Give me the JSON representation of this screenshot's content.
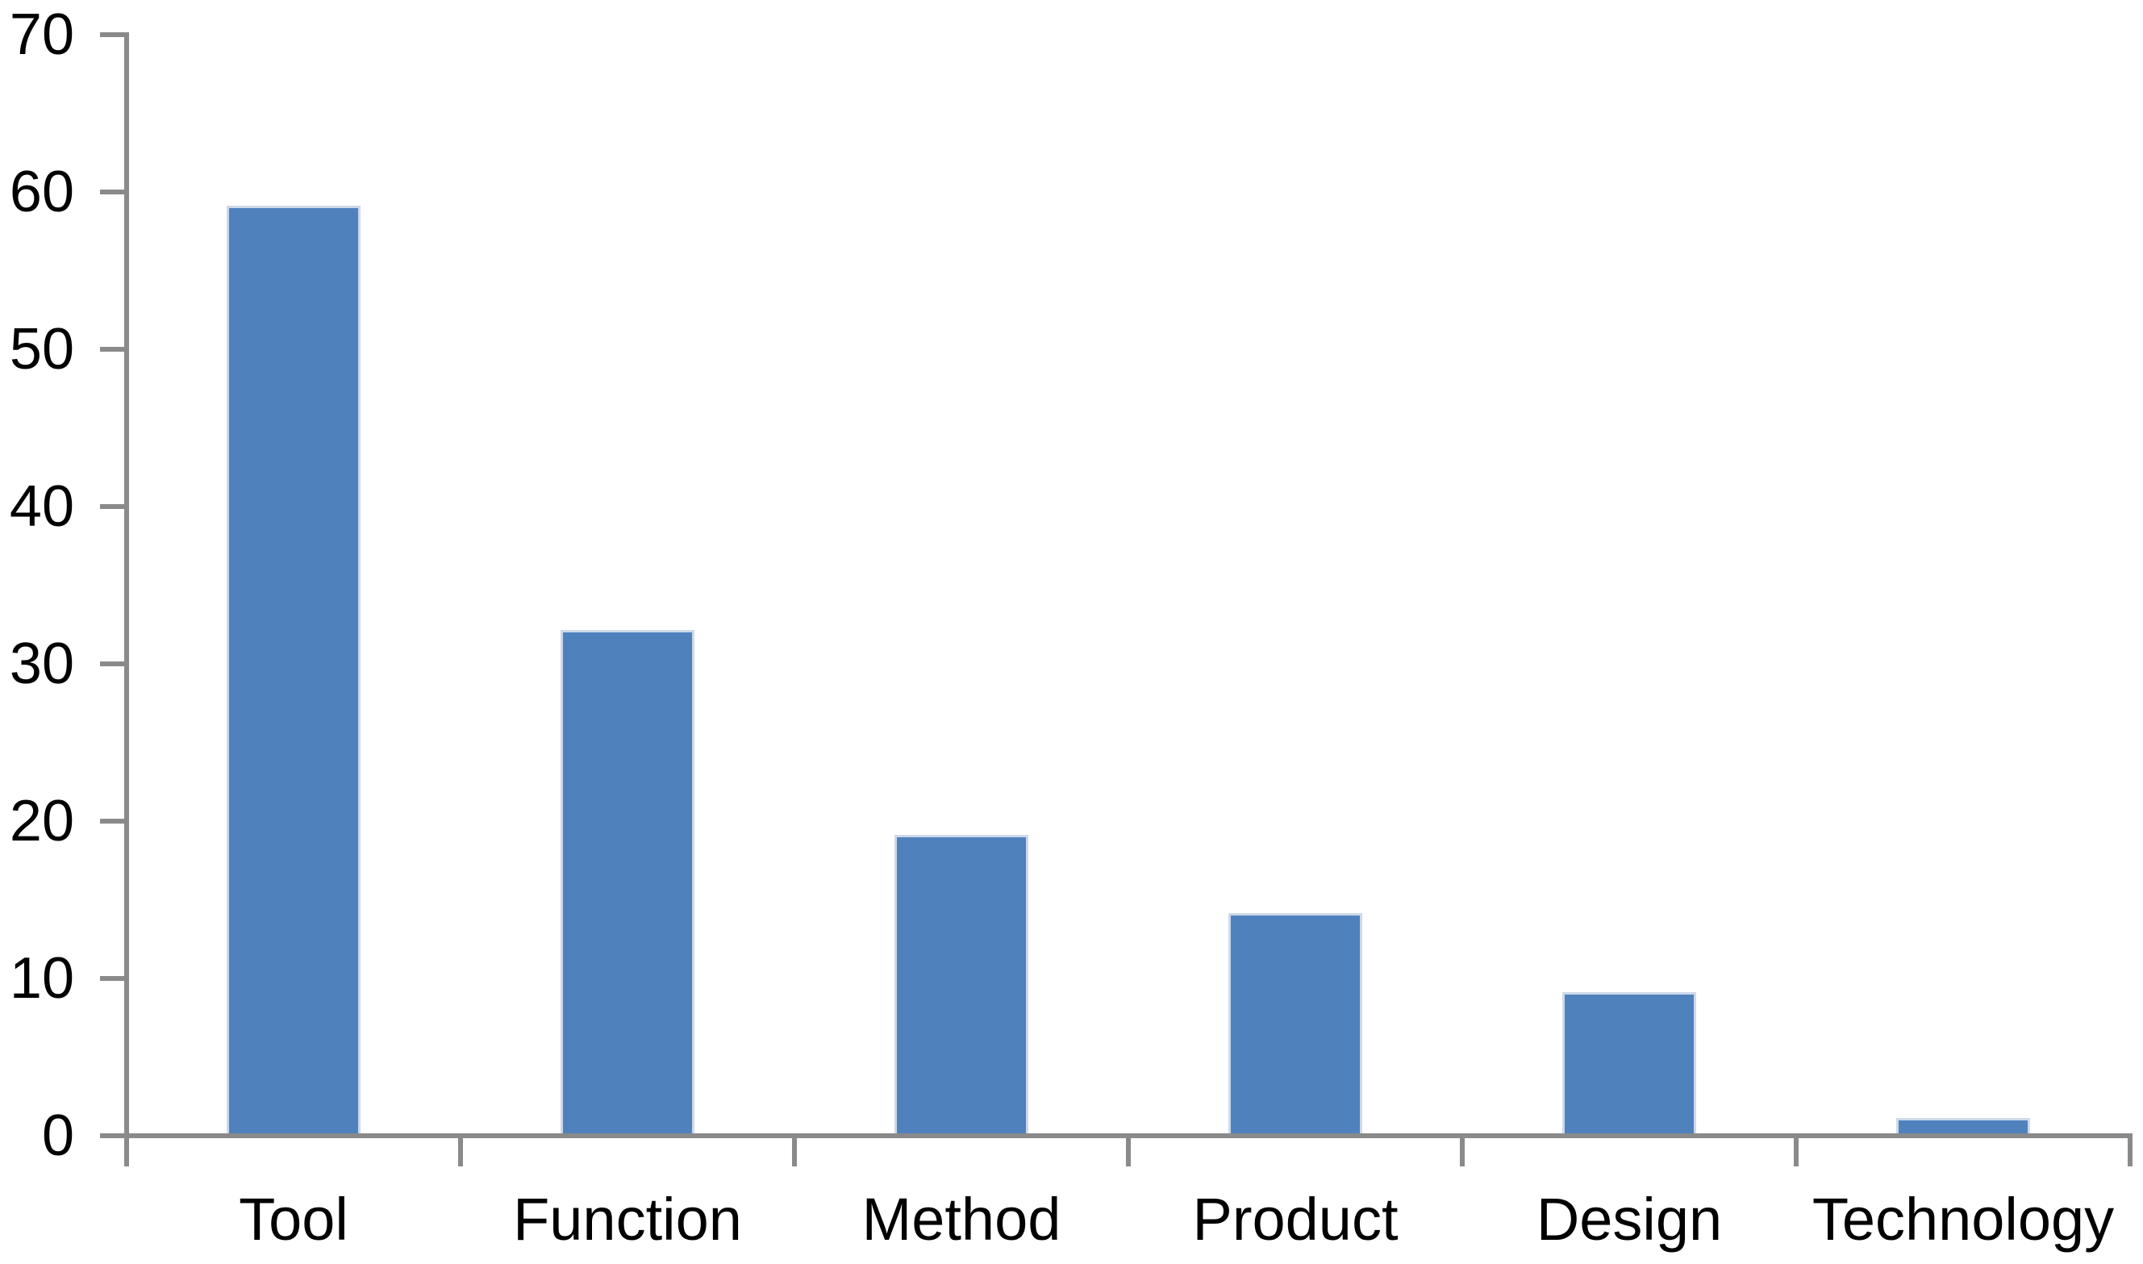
{
  "chart_data": {
    "type": "bar",
    "title": "",
    "xlabel": "",
    "ylabel": "",
    "categories": [
      "Tool",
      "Function",
      "Method",
      "Product",
      "Design",
      "Technology"
    ],
    "values": [
      59,
      32,
      19,
      14,
      9,
      1
    ],
    "ylim": [
      0,
      70
    ],
    "ytick_interval": 10,
    "ytick_labels": [
      "0",
      "10",
      "20",
      "30",
      "40",
      "50",
      "60",
      "70"
    ],
    "grid": false,
    "legend": false,
    "bar_color": "#4f81bd",
    "bar_border_color": "#cdd9ea",
    "axis_color": "#8a8a8a",
    "text_color": "#000000",
    "background_color": "#ffffff"
  }
}
